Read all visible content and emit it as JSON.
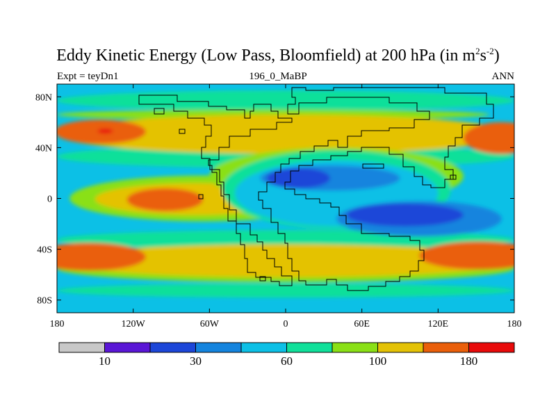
{
  "chart_data": {
    "type": "contour-map",
    "title": {
      "main": "Eddy Kinetic Energy (Low Pass, Bloomfield) at 200 hPa (in m",
      "unit_base_1": "2",
      "unit_s": "s",
      "unit_exp_2": "-2",
      "unit_close": ")"
    },
    "subtitle_left": "Expt = teyDn1",
    "subtitle_center": "196_0_MaBP",
    "subtitle_right": "ANN",
    "xaxis": {
      "range": [
        -180,
        180
      ],
      "ticks": [
        {
          "value": -180,
          "label": "180"
        },
        {
          "value": -120,
          "label": "120W"
        },
        {
          "value": -60,
          "label": "60W"
        },
        {
          "value": 0,
          "label": "0"
        },
        {
          "value": 60,
          "label": "60E"
        },
        {
          "value": 120,
          "label": "120E"
        },
        {
          "value": 180,
          "label": "180"
        }
      ]
    },
    "yaxis": {
      "range": [
        -90,
        90
      ],
      "ticks": [
        {
          "value": 80,
          "label": "80N"
        },
        {
          "value": 40,
          "label": "40N"
        },
        {
          "value": 0,
          "label": "0"
        },
        {
          "value": -40,
          "label": "40S"
        },
        {
          "value": -80,
          "label": "80S"
        }
      ]
    },
    "colorbar": {
      "colors": [
        "#c8c8c8",
        "#5a16d6",
        "#1c46d8",
        "#1484de",
        "#0cc0e6",
        "#10e09a",
        "#8ae016",
        "#e4c206",
        "#ea5f0a",
        "#e80a0a"
      ],
      "labels": [
        {
          "after_box": 1,
          "text": "10"
        },
        {
          "after_box": 3,
          "text": "30"
        },
        {
          "after_box": 5,
          "text": "60"
        },
        {
          "after_box": 7,
          "text": "100"
        },
        {
          "after_box": 9,
          "text": "180"
        }
      ]
    },
    "field": {
      "background_level": 4,
      "regions": [
        {
          "level": 5,
          "lon": [
            -180,
            180
          ],
          "lat": [
            69,
            85
          ]
        },
        {
          "level": 5,
          "lon": [
            -180,
            180
          ],
          "lat": [
            -78,
            -67
          ]
        },
        {
          "level": 5,
          "lon": [
            -180,
            180
          ],
          "lat": [
            24,
            42
          ]
        },
        {
          "level": 5,
          "lon": [
            -180,
            180
          ],
          "lat": [
            -40,
            -25
          ]
        },
        {
          "level": 6,
          "lon": [
            -180,
            160
          ],
          "lat": [
            62,
            70
          ]
        },
        {
          "level": 6,
          "lon": [
            -180,
            180
          ],
          "lat": [
            -66,
            -44
          ]
        },
        {
          "level": 6,
          "lon": [
            -170,
            40
          ],
          "lat": [
            -18,
            18
          ]
        },
        {
          "level": 7,
          "lon": [
            -180,
            180
          ],
          "lat": [
            35,
            66
          ]
        },
        {
          "level": 7,
          "lon": [
            -180,
            180
          ],
          "lat": [
            -62,
            -36
          ]
        },
        {
          "level": 7,
          "lon": [
            -150,
            10
          ],
          "lat": [
            -13,
            12
          ]
        },
        {
          "level": 6,
          "lon": [
            -60,
            140
          ],
          "lat": [
            -5,
            40
          ]
        },
        {
          "level": 5,
          "lon": [
            -50,
            130
          ],
          "lat": [
            -24,
            38
          ]
        },
        {
          "level": 4,
          "lon": [
            -40,
            120
          ],
          "lat": [
            -22,
            30
          ]
        },
        {
          "level": 3,
          "lon": [
            -20,
            90
          ],
          "lat": [
            6,
            26
          ]
        },
        {
          "level": 3,
          "lon": [
            40,
            170
          ],
          "lat": [
            -30,
            -2
          ]
        },
        {
          "level": 2,
          "lon": [
            -15,
            35
          ],
          "lat": [
            8,
            24
          ]
        },
        {
          "level": 2,
          "lon": [
            48,
            140
          ],
          "lat": [
            -22,
            -4
          ]
        },
        {
          "level": 8,
          "lon": [
            -182,
            -110
          ],
          "lat": [
            43,
            62
          ]
        },
        {
          "level": 8,
          "lon": [
            140,
            200
          ],
          "lat": [
            35,
            60
          ]
        },
        {
          "level": 8,
          "lon": [
            -125,
            -65
          ],
          "lat": [
            -10,
            8
          ]
        },
        {
          "level": 8,
          "lon": [
            -200,
            -110
          ],
          "lat": [
            -57,
            -35
          ]
        },
        {
          "level": 8,
          "lon": [
            105,
            200
          ],
          "lat": [
            -56,
            -34
          ]
        },
        {
          "level": 9,
          "lon": [
            -148,
            -136
          ],
          "lat": [
            51,
            55
          ]
        }
      ]
    },
    "legend": "bottom colorbar",
    "grid": false
  }
}
